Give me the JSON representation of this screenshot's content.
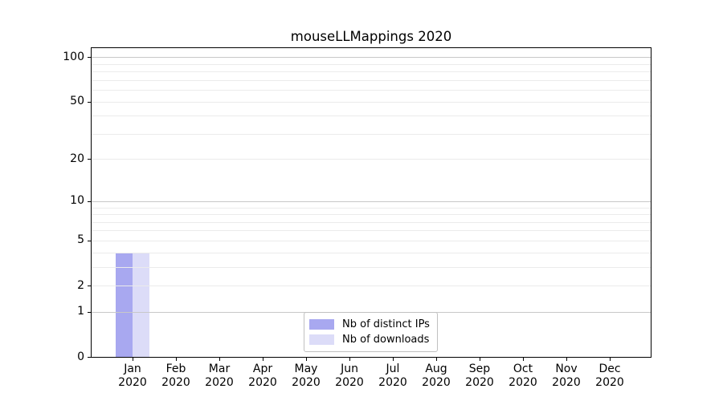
{
  "chart_data": {
    "type": "bar",
    "title": "mouseLLMappings 2020",
    "categories": [
      "Jan",
      "Feb",
      "Mar",
      "Apr",
      "May",
      "Jun",
      "Jul",
      "Aug",
      "Sep",
      "Oct",
      "Nov",
      "Dec"
    ],
    "x_year_line": "2020",
    "series": [
      {
        "name": "Nb of distinct IPs",
        "color": "#a8a8f0",
        "values": [
          4,
          0,
          0,
          0,
          0,
          0,
          0,
          0,
          0,
          0,
          0,
          0
        ]
      },
      {
        "name": "Nb of downloads",
        "color": "#dcdcf8",
        "values": [
          4,
          0,
          0,
          0,
          0,
          0,
          0,
          0,
          0,
          0,
          0,
          0
        ]
      }
    ],
    "yscale": "log1p",
    "ylim": [
      0,
      115
    ],
    "yticks": [
      0,
      1,
      2,
      5,
      10,
      20,
      50,
      100
    ],
    "major_gridlines": [
      1,
      10,
      100
    ],
    "minor_gridlines": [
      2,
      3,
      4,
      5,
      6,
      7,
      8,
      9,
      20,
      30,
      40,
      50,
      60,
      70,
      80,
      90
    ],
    "grid": true,
    "legend_position": "lower center",
    "xlabel": "",
    "ylabel": ""
  },
  "colors": {
    "axis": "#000000",
    "major_grid": "#c8c8c8",
    "minor_grid": "#ebebeb",
    "legend_border": "#c0c0c0",
    "background": "#ffffff"
  }
}
